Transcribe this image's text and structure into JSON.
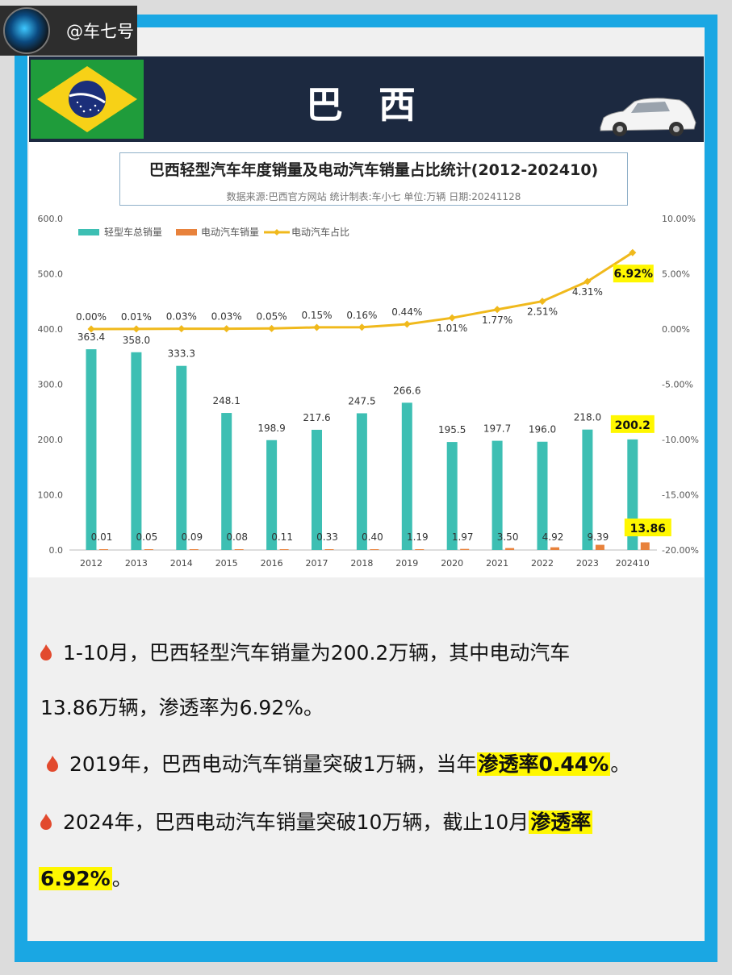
{
  "account": "@车七号",
  "header": {
    "country": "巴 西"
  },
  "chart_data": {
    "type": "bar",
    "title": "巴西轻型汽车年度销量及电动汽车销量占比统计(2012-202410)",
    "subtitle": "数据来源:巴西官方网站  统计制表:车小七  单位:万辆  日期:20241128",
    "categories": [
      "2012",
      "2013",
      "2014",
      "2015",
      "2016",
      "2017",
      "2018",
      "2019",
      "2020",
      "2021",
      "2022",
      "2023",
      "202410"
    ],
    "series": [
      {
        "name": "轻型车总销量",
        "type": "bar",
        "axis": "left",
        "color": "#3dbfb3",
        "values": [
          363.4,
          358.0,
          333.3,
          248.1,
          198.9,
          217.6,
          247.5,
          266.6,
          195.5,
          197.7,
          196.0,
          218.0,
          200.2
        ],
        "labels": [
          "363.4",
          "358.0",
          "333.3",
          "248.1",
          "198.9",
          "217.6",
          "247.5",
          "266.6",
          "195.5",
          "197.7",
          "196.0",
          "218.0",
          "200.2"
        ]
      },
      {
        "name": "电动汽车销量",
        "type": "bar",
        "axis": "left",
        "color": "#e8823c",
        "values": [
          0.01,
          0.05,
          0.09,
          0.08,
          0.11,
          0.33,
          0.4,
          1.19,
          1.97,
          3.5,
          4.92,
          9.39,
          13.86
        ],
        "labels": [
          "0.01",
          "0.05",
          "0.09",
          "0.08",
          "0.11",
          "0.33",
          "0.40",
          "1.19",
          "1.97",
          "3.50",
          "4.92",
          "9.39",
          "13.86"
        ]
      },
      {
        "name": "电动汽车占比",
        "type": "line",
        "axis": "right",
        "color": "#f0b91c",
        "values": [
          0.0,
          0.01,
          0.03,
          0.03,
          0.05,
          0.15,
          0.16,
          0.44,
          1.01,
          1.77,
          2.51,
          4.31,
          6.92
        ],
        "labels": [
          "0.00%",
          "0.01%",
          "0.03%",
          "0.03%",
          "0.05%",
          "0.15%",
          "0.16%",
          "0.44%",
          "1.01%",
          "1.77%",
          "2.51%",
          "4.31%",
          "6.92%"
        ]
      }
    ],
    "yaxis_left": {
      "min": 0,
      "max": 600,
      "ticks": [
        "0.0",
        "100.0",
        "200.0",
        "300.0",
        "400.0",
        "500.0",
        "600.0"
      ]
    },
    "yaxis_right": {
      "min": -20,
      "max": 10,
      "ticks": [
        "-20.00%",
        "-15.00%",
        "-10.00%",
        "-5.00%",
        "0.00%",
        "5.00%",
        "10.00%"
      ]
    },
    "legend_position": "top-left",
    "grid": false
  },
  "notes": {
    "line1a": "1-10月，巴西轻型汽车销量为200.2万辆，其中电动汽车",
    "line1b": "13.86万辆，渗透率为6.92%。",
    "line2_text": "2019年，巴西电动汽车销量突破1万辆，当年",
    "line2_hl": "渗透率0.44%",
    "line2_end": "。",
    "line3_text": "2024年，巴西电动汽车销量突破10万辆，截止10月",
    "line3_hl": "渗透率",
    "line4_hl": "6.92%",
    "line4_end": "。"
  }
}
